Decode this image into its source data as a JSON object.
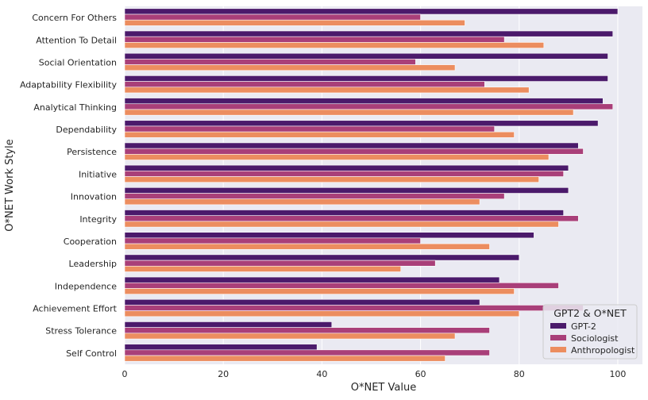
{
  "chart_data": {
    "type": "bar",
    "orientation": "horizontal",
    "categories": [
      "Concern For Others",
      "Attention To Detail",
      "Social Orientation",
      "Adaptability Flexibility",
      "Analytical Thinking",
      "Dependability",
      "Persistence",
      "Initiative",
      "Innovation",
      "Integrity",
      "Cooperation",
      "Leadership",
      "Independence",
      "Achievement Effort",
      "Stress Tolerance",
      "Self Control"
    ],
    "series": [
      {
        "name": "GPT-2",
        "color": "#4b1a6b",
        "values": [
          100,
          99,
          98,
          98,
          97,
          96,
          92,
          90,
          90,
          89,
          83,
          80,
          76,
          72,
          42,
          39
        ]
      },
      {
        "name": "Sociologist",
        "color": "#a93f79",
        "values": [
          60,
          77,
          59,
          73,
          99,
          75,
          93,
          89,
          77,
          92,
          60,
          63,
          88,
          93,
          74,
          74
        ]
      },
      {
        "name": "Anthropologist",
        "color": "#ec8d5f",
        "values": [
          69,
          85,
          67,
          82,
          91,
          79,
          86,
          84,
          72,
          88,
          74,
          56,
          79,
          80,
          67,
          65
        ]
      }
    ],
    "xlabel": "O*NET Value",
    "ylabel": "O*NET Work Style",
    "xlim": [
      0,
      105
    ],
    "xticks": [
      "0",
      "20",
      "40",
      "60",
      "80",
      "100"
    ],
    "grid": true,
    "legend": {
      "title": "GPT2 & O*NET",
      "placement": "bottom-right"
    }
  }
}
